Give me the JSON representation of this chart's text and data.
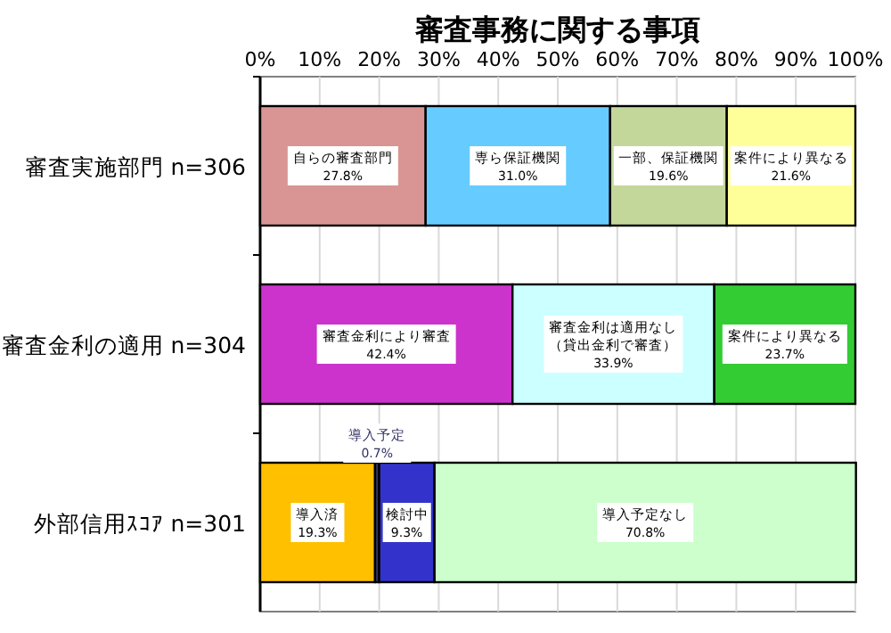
{
  "chart_data": {
    "type": "bar",
    "orientation": "horizontal",
    "stacked": true,
    "title": "審査事務に関する事項",
    "categories": [
      "審査実施部門 n=306",
      "審査金利の適用 n=304",
      "外部信用ｽｺｱ n=301"
    ],
    "xlim": [
      0,
      100
    ],
    "xticks": [
      {
        "value": 0,
        "label": "0%"
      },
      {
        "value": 10,
        "label": "10%"
      },
      {
        "value": 20,
        "label": "20%"
      },
      {
        "value": 30,
        "label": "30%"
      },
      {
        "value": 40,
        "label": "40%"
      },
      {
        "value": 50,
        "label": "50%"
      },
      {
        "value": 60,
        "label": "60%"
      },
      {
        "value": 70,
        "label": "70%"
      },
      {
        "value": 80,
        "label": "80%"
      },
      {
        "value": 90,
        "label": "90%"
      },
      {
        "value": 100,
        "label": "100%"
      }
    ],
    "grid": "x",
    "legend": false,
    "series": [
      {
        "name": "自らの審査部門",
        "color": "#d99594",
        "values": [
          27.8,
          null,
          null
        ],
        "value_labels": [
          "27.8%",
          null,
          null
        ]
      },
      {
        "name": "専ら保証機関",
        "color": "#66ccff",
        "values": [
          31.0,
          null,
          null
        ],
        "value_labels": [
          "31.0%",
          null,
          null
        ]
      },
      {
        "name": "一部、保証機関",
        "color": "#c4d79b",
        "values": [
          19.6,
          null,
          null
        ],
        "value_labels": [
          "19.6%",
          null,
          null
        ]
      },
      {
        "name": "案件により異なる",
        "color": "#ffff99",
        "values": [
          21.6,
          null,
          null
        ],
        "value_labels": [
          "21.6%",
          null,
          null
        ]
      },
      {
        "name": "審査金利により審査",
        "color": "#cc33cc",
        "values": [
          null,
          42.4,
          null
        ],
        "value_labels": [
          null,
          "42.4%",
          null
        ]
      },
      {
        "name": "審査金利は適用なし（貸出金利で審査）",
        "color": "#ccffff",
        "values": [
          null,
          33.9,
          null
        ],
        "value_labels": [
          null,
          "33.9%",
          null
        ]
      },
      {
        "name": "案件により異なる",
        "color": "#33cc33",
        "values": [
          null,
          23.7,
          null
        ],
        "value_labels": [
          null,
          "23.7%",
          null
        ]
      },
      {
        "name": "導入済",
        "color": "#ffc000",
        "values": [
          null,
          null,
          19.3
        ],
        "value_labels": [
          null,
          null,
          "19.3%"
        ]
      },
      {
        "name": "導入予定",
        "color": "#333366",
        "values": [
          null,
          null,
          0.7
        ],
        "value_labels": [
          null,
          null,
          "0.7%"
        ]
      },
      {
        "name": "検討中",
        "color": "#3333cc",
        "values": [
          null,
          null,
          9.3
        ],
        "value_labels": [
          null,
          null,
          "9.3%"
        ]
      },
      {
        "name": "導入予定なし",
        "color": "#ccffcc",
        "values": [
          null,
          null,
          70.8
        ],
        "value_labels": [
          null,
          null,
          "70.8%"
        ]
      }
    ]
  }
}
